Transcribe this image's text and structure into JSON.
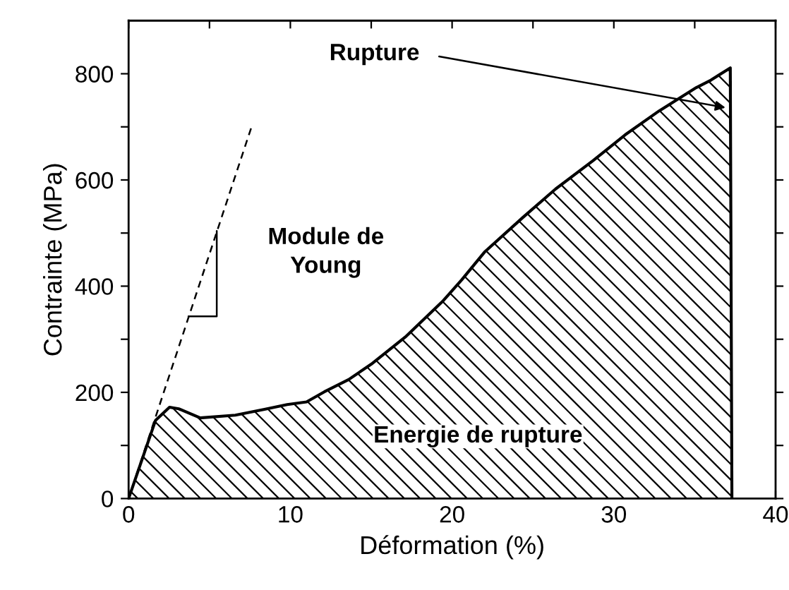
{
  "chart_data": {
    "type": "area",
    "xlabel": "Déformation (%)",
    "ylabel": "Contrainte (MPa)",
    "xlim": [
      0,
      40
    ],
    "ylim": [
      0,
      900
    ],
    "xticks": [
      0,
      {
        "value": 5,
        "label": null
      },
      10,
      {
        "value": 15,
        "label": null
      },
      20,
      {
        "value": 25,
        "label": null
      },
      30,
      {
        "value": 35,
        "label": null
      },
      40
    ],
    "yticks": [
      0,
      {
        "value": 100,
        "label": null
      },
      200,
      {
        "value": 300,
        "label": null
      },
      400,
      {
        "value": 500,
        "label": null
      },
      600,
      {
        "value": 700,
        "label": null
      },
      800
    ],
    "grid": false,
    "legend": false,
    "series": [
      {
        "color": "#000000",
        "x": [
          0,
          1.66,
          2.53,
          3.1,
          4.43,
          6.6,
          8.4,
          9.8,
          11,
          12.1,
          13.6,
          15.0,
          17.1,
          19.4,
          20.6,
          22,
          24.4,
          26.4,
          28.7,
          30.7,
          32.8,
          35.1,
          36,
          37.2,
          37.3
        ],
        "values": [
          0,
          147,
          172,
          169,
          152,
          157,
          168,
          177,
          182,
          201,
          224,
          253,
          304,
          371,
          412,
          464,
          530,
          583,
          636,
          685,
          730,
          774,
          788,
          811,
          0
        ]
      },
      {
        "type": "line",
        "line_style": "dashed",
        "color": "#000000",
        "x": [
          0,
          7.6
        ],
        "values": [
          0,
          700
        ]
      }
    ],
    "annotations": [
      "Rupture",
      "Module de\nYoung",
      "Energie de rupture"
    ]
  }
}
